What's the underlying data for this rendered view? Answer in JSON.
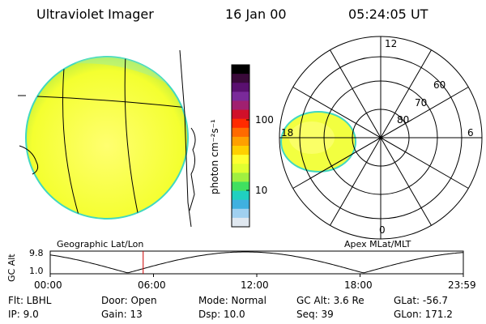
{
  "header": {
    "instrument": "Ultraviolet Imager",
    "date": "16 Jan 00",
    "time": "05:24:05 UT"
  },
  "colorbar": {
    "unit_label": "photon cm⁻²s⁻¹",
    "tick_100": "100",
    "tick_10": "10",
    "colors": [
      "#000000",
      "#3a0a3a",
      "#5a1070",
      "#7a2a9a",
      "#a02070",
      "#d0102a",
      "#ff2a00",
      "#ff6a00",
      "#ffa000",
      "#ffd000",
      "#ffff30",
      "#e0ff30",
      "#a0f040",
      "#40e060",
      "#20d0c0",
      "#40b0e0",
      "#a0d0f0",
      "#e0e8f0"
    ]
  },
  "globe_map": {
    "label": "Geographic Lat/Lon"
  },
  "polar_map": {
    "label": "Apex MLat/MLT",
    "mlt_labels": {
      "top": "12",
      "right": "6",
      "bottom": "0",
      "left": "18"
    },
    "lat_labels": [
      "60",
      "70",
      "80"
    ]
  },
  "altitude_plot": {
    "ylabel": "GC Alt",
    "ytick_top": "9.8",
    "ytick_bottom": "1.0",
    "xticks": [
      "00:00",
      "06:00",
      "12:00",
      "18:00",
      "23:59"
    ],
    "current_time_hours": 5.4
  },
  "footer": {
    "row1": {
      "flt": "Flt: LBHL",
      "door": "Door: Open",
      "mode": "Mode: Normal",
      "gcalt": "GC Alt: 3.6 Re",
      "glat": "GLat: -56.7"
    },
    "row2": {
      "ip": "IP:  9.0",
      "gain": "Gain: 13",
      "dsp": "Dsp:    10.0",
      "seq": "Seq: 39",
      "glon": "GLon: 171.2"
    }
  }
}
